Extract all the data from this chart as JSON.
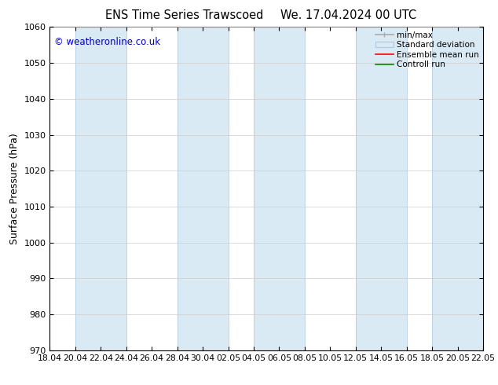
{
  "title": "ENS Time Series Trawscoed",
  "title2": "We. 17.04.2024 00 UTC",
  "xlabel_ticks": [
    "18.04",
    "20.04",
    "22.04",
    "24.04",
    "26.04",
    "28.04",
    "30.04",
    "02.05",
    "04.05",
    "06.05",
    "08.05",
    "10.05",
    "12.05",
    "14.05",
    "16.05",
    "18.05",
    "20.05",
    "22.05"
  ],
  "ylabel": "Surface Pressure (hPa)",
  "ylim": [
    970,
    1060
  ],
  "yticks": [
    970,
    980,
    990,
    1000,
    1010,
    1020,
    1030,
    1040,
    1050,
    1060
  ],
  "watermark": "© weatheronline.co.uk",
  "watermark_color": "#0000cc",
  "band_color": "#daeaf5",
  "band_edge_color": "#a8c8e0",
  "bg_color": "#ffffff",
  "legend_labels": [
    "min/max",
    "Standard deviation",
    "Ensemble mean run",
    "Controll run"
  ],
  "legend_colors": [
    "#aaaaaa",
    "#c8dce8",
    "#ff0000",
    "#008800"
  ],
  "shaded_band_indices": [
    1,
    5,
    8,
    12,
    15,
    16,
    17
  ],
  "title_fontsize": 11
}
